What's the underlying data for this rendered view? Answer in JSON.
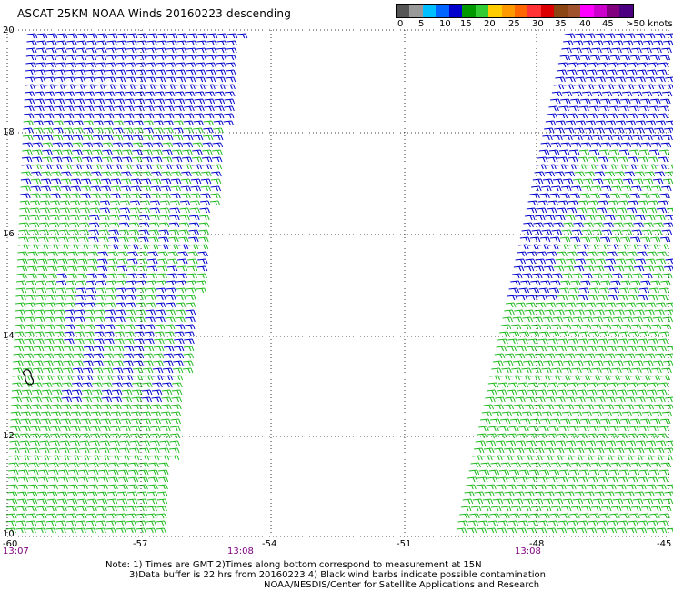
{
  "title": "ASCAT 25KM NOAA Winds 20160223 descending",
  "legend": {
    "colors": [
      "#555555",
      "#999999",
      "#00bfff",
      "#0066ff",
      "#0000cc",
      "#009900",
      "#33cc33",
      "#ffcc00",
      "#ff9900",
      "#ff6600",
      "#ff3333",
      "#dd0000",
      "#8b4513",
      "#a0522d",
      "#ff00ff",
      "#cc00cc",
      "#800080",
      "#4b0082"
    ],
    "labels": [
      "0",
      "5",
      "10",
      "15",
      "20",
      "25",
      "30",
      "35",
      "40",
      "45",
      ">50 knots"
    ]
  },
  "axes": {
    "y_labels": [
      "20",
      "18",
      "16",
      "14",
      "12",
      "10"
    ],
    "x_labels": [
      "-60",
      "-57",
      "-54",
      "-51",
      "-48",
      "-45"
    ],
    "time_labels": [
      "13:07",
      "13:08",
      "13:08"
    ]
  },
  "notes": {
    "line1": "Note: 1) Times are GMT 2)Times along bottom correspond to measurement at 15N",
    "line2": "3)Data buffer is 22 hrs from 20160223 4) Black wind barbs indicate possible contamination",
    "line3": "NOAA/NESDIS/Center for Satellite Applications and Research"
  },
  "colors": {
    "blue_barb": "#0000cc",
    "green_barb": "#22bb22",
    "grid": "#000000",
    "time": "#800080"
  }
}
